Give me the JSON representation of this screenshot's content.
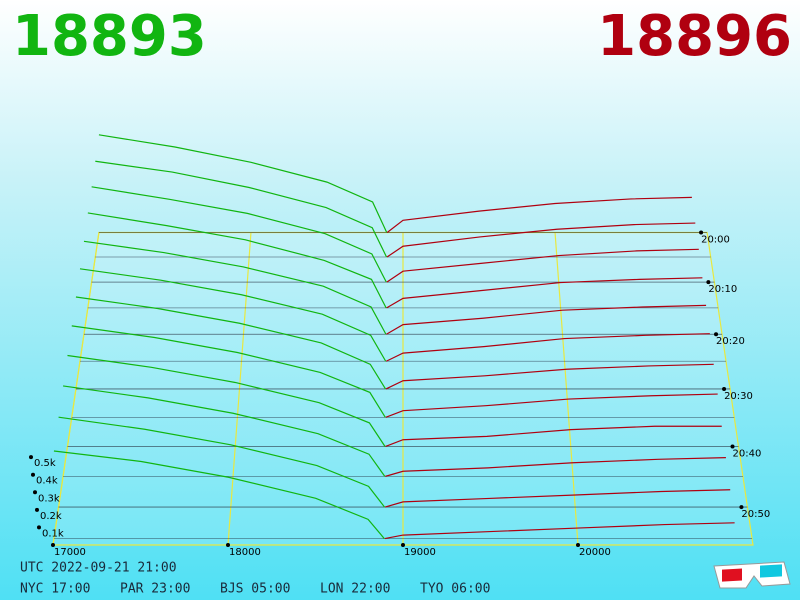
{
  "chart_data": {
    "type": "depth3d",
    "bid": 18893,
    "ask": 18896,
    "bid_color": "#11b511",
    "ask_color": "#b00010",
    "xlim": [
      17000,
      21000
    ],
    "xticks": [
      17000,
      18000,
      19000,
      20000
    ],
    "ylim": [
      0,
      0.7
    ],
    "yticks": [
      {
        "value": 0.1,
        "label": "0.1k"
      },
      {
        "value": 0.2,
        "label": "0.2k"
      },
      {
        "value": 0.3,
        "label": "0.3k"
      },
      {
        "value": 0.4,
        "label": "0.4k"
      },
      {
        "value": 0.5,
        "label": "0.5k"
      }
    ],
    "zlim": [
      1200,
      1256
    ],
    "zticks": [
      {
        "value": 1200,
        "label": "20:00"
      },
      {
        "value": 1210,
        "label": "20:10"
      },
      {
        "value": 1220,
        "label": "20:20"
      },
      {
        "value": 1230,
        "label": "20:30"
      },
      {
        "value": 1240,
        "label": "20:40"
      },
      {
        "value": 1250,
        "label": "20:50"
      }
    ],
    "bid_prices": [
      17000,
      17500,
      18000,
      18500,
      18800,
      18893
    ],
    "ask_prices": [
      18896,
      19000,
      19500,
      20000,
      20500,
      20900
    ],
    "snapshots": [
      {
        "time": 1200,
        "bids": [
          0.64,
          0.56,
          0.46,
          0.33,
          0.2,
          0
        ],
        "asks": [
          0,
          0.08,
          0.14,
          0.19,
          0.22,
          0.23
        ]
      },
      {
        "time": 1205,
        "bids": [
          0.62,
          0.55,
          0.45,
          0.32,
          0.19,
          0
        ],
        "asks": [
          0,
          0.07,
          0.13,
          0.18,
          0.21,
          0.22
        ]
      },
      {
        "time": 1210,
        "bids": [
          0.61,
          0.53,
          0.44,
          0.31,
          0.18,
          0
        ],
        "asks": [
          0,
          0.07,
          0.12,
          0.17,
          0.2,
          0.21
        ]
      },
      {
        "time": 1215,
        "bids": [
          0.6,
          0.52,
          0.43,
          0.3,
          0.18,
          0
        ],
        "asks": [
          0,
          0.06,
          0.11,
          0.16,
          0.18,
          0.19
        ]
      },
      {
        "time": 1220,
        "bids": [
          0.58,
          0.51,
          0.42,
          0.3,
          0.17,
          0
        ],
        "asks": [
          0,
          0.06,
          0.1,
          0.15,
          0.17,
          0.18
        ]
      },
      {
        "time": 1225,
        "bids": [
          0.57,
          0.5,
          0.41,
          0.29,
          0.16,
          0
        ],
        "asks": [
          0,
          0.05,
          0.09,
          0.14,
          0.16,
          0.17
        ]
      },
      {
        "time": 1230,
        "bids": [
          0.56,
          0.49,
          0.4,
          0.28,
          0.15,
          0
        ],
        "asks": [
          0,
          0.05,
          0.08,
          0.12,
          0.14,
          0.15
        ]
      },
      {
        "time": 1235,
        "bids": [
          0.55,
          0.48,
          0.39,
          0.27,
          0.15,
          0
        ],
        "asks": [
          0,
          0.04,
          0.07,
          0.11,
          0.13,
          0.14
        ]
      },
      {
        "time": 1240,
        "bids": [
          0.54,
          0.47,
          0.38,
          0.26,
          0.14,
          0
        ],
        "asks": [
          0,
          0.04,
          0.06,
          0.1,
          0.12,
          0.12
        ]
      },
      {
        "time": 1245,
        "bids": [
          0.53,
          0.46,
          0.37,
          0.25,
          0.13,
          0
        ],
        "asks": [
          0,
          0.03,
          0.05,
          0.08,
          0.1,
          0.11
        ]
      },
      {
        "time": 1250,
        "bids": [
          0.52,
          0.45,
          0.36,
          0.24,
          0.12,
          0
        ],
        "asks": [
          0,
          0.03,
          0.05,
          0.07,
          0.09,
          0.1
        ]
      },
      {
        "time": 1255,
        "bids": [
          0.5,
          0.44,
          0.35,
          0.23,
          0.11,
          0
        ],
        "asks": [
          0,
          0.02,
          0.04,
          0.06,
          0.08,
          0.09
        ]
      }
    ],
    "footer": {
      "utc": "UTC 2022-09-21 21:00",
      "clocks": [
        "NYC 17:00",
        "PAR 23:00",
        "BJS 05:00",
        "LON 22:00",
        "TYO 06:00"
      ]
    }
  }
}
